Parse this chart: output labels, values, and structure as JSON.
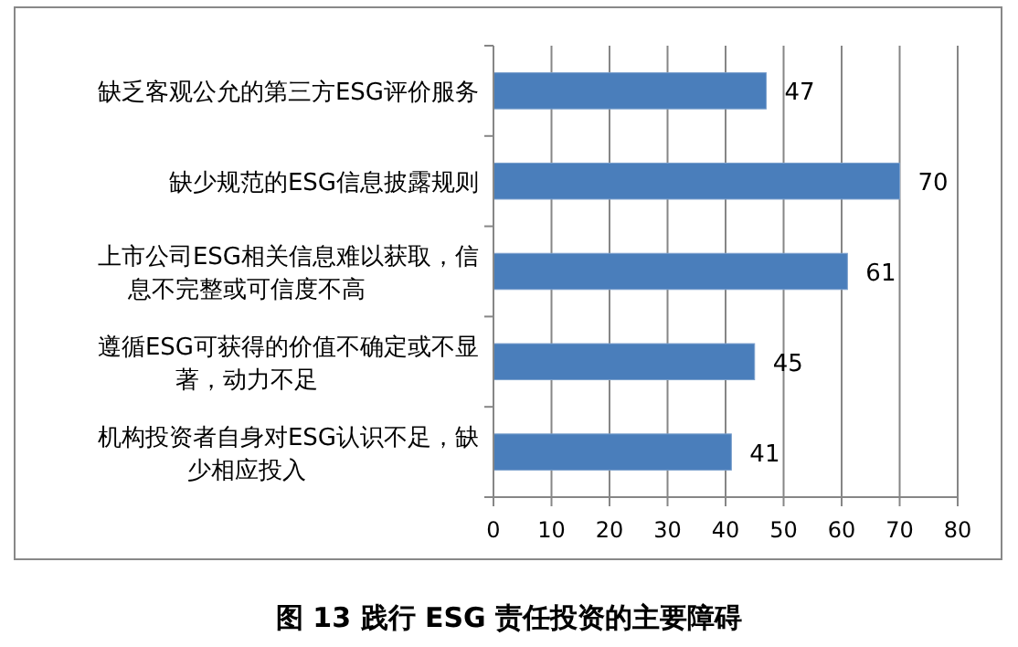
{
  "chart_data": {
    "type": "bar",
    "orientation": "horizontal",
    "title": "图 13 践行 ESG 责任投资的主要障碍",
    "categories": [
      "缺乏客观公允的第三方ESG评价服务",
      "缺少规范的ESG信息披露规则",
      "上市公司ESG相关信息难以获取，信息不完整或可信度不高",
      "遵循ESG可获得的价值不确定或不显著，动力不足",
      "机构投资者自身对ESG认识不足，缺少相应投入"
    ],
    "values": [
      47,
      70,
      61,
      45,
      41
    ],
    "color": "#4a7ebb",
    "xlim": [
      0,
      80
    ],
    "xticks": [
      0,
      10,
      20,
      30,
      40,
      50,
      60,
      70,
      80
    ],
    "grid": "x",
    "data_labels": true
  }
}
